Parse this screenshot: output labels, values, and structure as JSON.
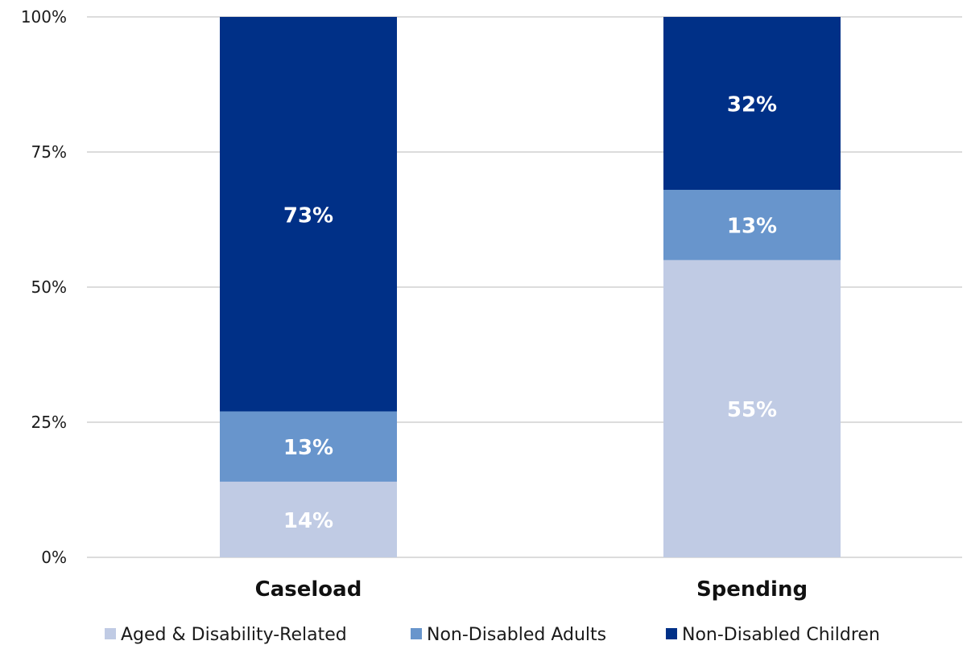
{
  "chart_data": {
    "type": "bar",
    "stacked": true,
    "categories": [
      "Caseload",
      "Spending"
    ],
    "series": [
      {
        "name": "Aged & Disability-Related",
        "values": [
          14,
          55
        ],
        "labels": [
          "14%",
          "55%"
        ],
        "color": "#c0cbe4"
      },
      {
        "name": "Non-Disabled Adults",
        "values": [
          13,
          13
        ],
        "labels": [
          "13%",
          "13%"
        ],
        "color": "#6895cc"
      },
      {
        "name": "Non-Disabled Children",
        "values": [
          73,
          32
        ],
        "labels": [
          "73%",
          "32%"
        ],
        "color": "#003087"
      }
    ],
    "ylim": [
      0,
      100
    ],
    "yticks": [
      0,
      25,
      50,
      75,
      100
    ],
    "ytick_labels": [
      "0%",
      "25%",
      "50%",
      "75%",
      "100%"
    ],
    "grid": true,
    "legend_position": "bottom",
    "title": "",
    "xlabel": "",
    "ylabel": ""
  }
}
